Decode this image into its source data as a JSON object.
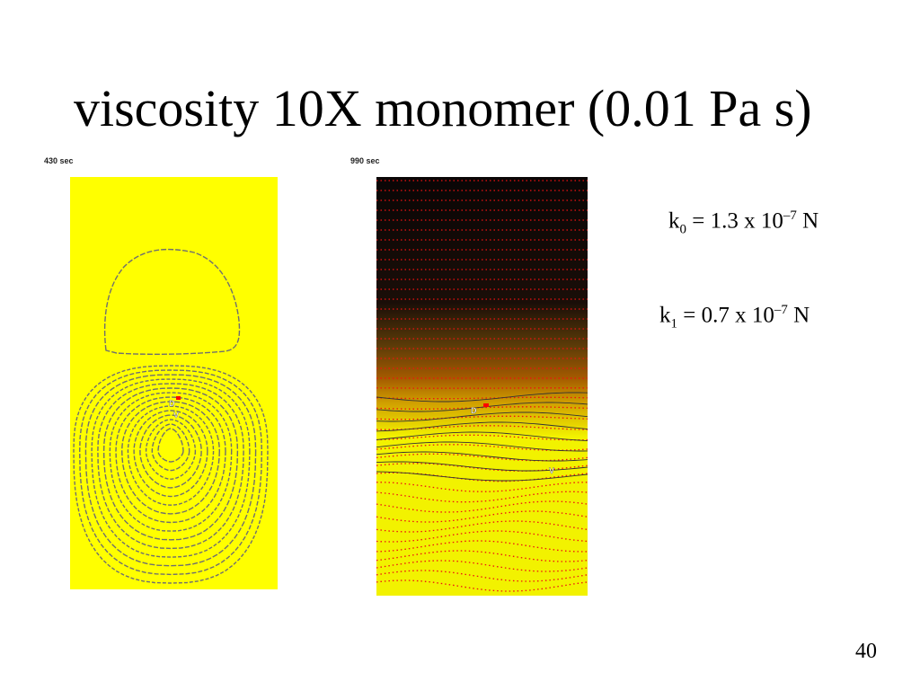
{
  "slide": {
    "title": "viscosity 10X monomer (0.01 Pa s)",
    "page_number": "40"
  },
  "panels": [
    {
      "time_label": "430 sec",
      "marker_D": "D",
      "marker_V": "V"
    },
    {
      "time_label": "990 sec",
      "marker_D": "D",
      "marker_V": "V"
    }
  ],
  "equations": {
    "k0": {
      "symbol": "k",
      "subscript": "0",
      "middle": " = 1.3 x 10",
      "exponent": "–7",
      "unit": " N"
    },
    "k1": {
      "symbol": "k",
      "subscript": "1",
      "middle": " = 0.7 x 10",
      "exponent": "–7",
      "unit": " N"
    }
  },
  "colors": {
    "field_yellow": "#ffff00",
    "panel2_yellow": "#f2f200",
    "contour_gray": "#6f6f6f",
    "marker_red": "#ff0000",
    "dot_red": "#ee1111"
  }
}
